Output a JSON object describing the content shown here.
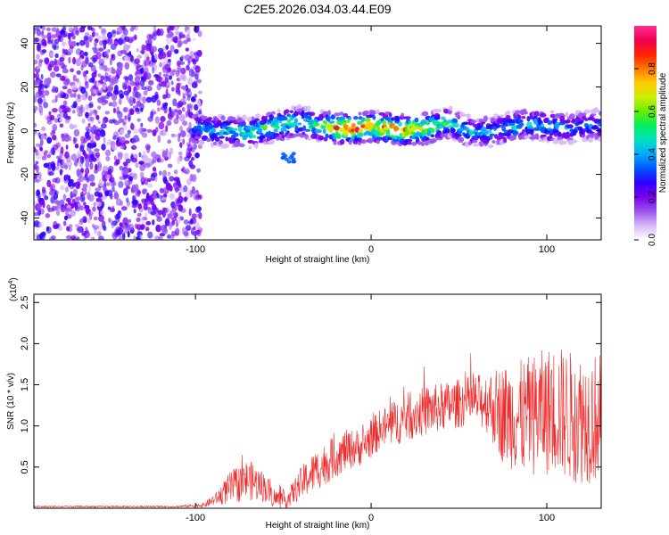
{
  "figure": {
    "title": "C2E5.2026.034.03.44.E09"
  },
  "colors": {
    "snr_line": "#ee2a2a",
    "axis": "#000000",
    "background": "#ffffff",
    "colormap": [
      "#ffffff",
      "#d8b8f8",
      "#9a55ee",
      "#7a00ee",
      "#3000ff",
      "#0055ff",
      "#00aaff",
      "#00e0c0",
      "#00ee60",
      "#66ee00",
      "#ccee00",
      "#ffcc00",
      "#ff7700",
      "#ff2200",
      "#ee0055",
      "#ff2d8c"
    ]
  },
  "chart_data": [
    {
      "type": "heatmap",
      "title": "C2E5.2026.034.03.44.E09",
      "xlabel": "Height of straight line (km)",
      "ylabel": "Frequency (Hz)",
      "xlim": [
        -192,
        131
      ],
      "ylim": [
        -50,
        48
      ],
      "xticks": [
        -100,
        0,
        100
      ],
      "xtick_labels": [
        "-100",
        "0",
        "100"
      ],
      "yticks": [
        -40,
        -20,
        0,
        20,
        40
      ],
      "ytick_labels": [
        "-40",
        "-20",
        "0",
        "20",
        "40"
      ],
      "colorbar": {
        "label": "Normalized spectral amplitude",
        "range": [
          0,
          1
        ],
        "ticks": [
          0.0,
          0.2,
          0.4,
          0.6,
          0.8
        ],
        "tick_labels": [
          "0.0",
          "0.2",
          "0.4",
          "0.6",
          "0.8"
        ]
      },
      "noise_region_x": [
        -192,
        -97
      ],
      "ridge": {
        "x": [
          -100,
          -85,
          -70,
          -60,
          -50,
          -40,
          -30,
          -20,
          -10,
          0,
          10,
          20,
          30,
          40,
          45,
          50,
          60,
          70,
          80,
          90,
          100,
          110,
          120,
          131
        ],
        "frequency": [
          1,
          0,
          -1,
          1,
          3,
          4,
          2,
          1,
          1,
          2,
          1,
          0,
          1,
          3,
          4,
          1,
          -1,
          0,
          2,
          3,
          2,
          1,
          2,
          3
        ],
        "amplitude": [
          0.45,
          0.5,
          0.55,
          0.6,
          0.6,
          0.55,
          0.6,
          0.9,
          0.95,
          0.85,
          0.9,
          0.85,
          0.75,
          0.6,
          0.55,
          0.5,
          0.45,
          0.45,
          0.5,
          0.45,
          0.5,
          0.45,
          0.4,
          0.4
        ]
      },
      "side_blob": {
        "x": -47,
        "frequency": -12,
        "amplitude": 0.3
      }
    },
    {
      "type": "line",
      "xlabel": "Height of straight line (km)",
      "ylabel": "SNR (10 * v/v)",
      "scale_label": "(x10",
      "scale_exponent": "4",
      "scale_close": ")",
      "xlim": [
        -192,
        131
      ],
      "ylim": [
        0,
        2.6
      ],
      "xticks": [
        -100,
        0,
        100
      ],
      "xtick_labels": [
        "-100",
        "0",
        "100"
      ],
      "yticks": [
        0.5,
        1.0,
        1.5,
        2.0,
        2.5
      ],
      "ytick_labels": [
        "0.5",
        "1.0",
        "1.5",
        "2.0",
        "2.5"
      ],
      "envelope": {
        "x": [
          -192,
          -110,
          -95,
          -88,
          -80,
          -70,
          -60,
          -55,
          -48,
          -40,
          -32,
          -25,
          -15,
          -5,
          5,
          15,
          25,
          35,
          45,
          55,
          65,
          75,
          85,
          95,
          105,
          115,
          125,
          131
        ],
        "mean": [
          0.02,
          0.02,
          0.04,
          0.12,
          0.25,
          0.35,
          0.25,
          0.12,
          0.1,
          0.3,
          0.45,
          0.55,
          0.7,
          0.75,
          0.95,
          1.05,
          1.15,
          1.2,
          1.25,
          1.3,
          1.3,
          1.15,
          1.1,
          1.15,
          1.2,
          1.1,
          1.1,
          1.1
        ],
        "spread": [
          0.01,
          0.01,
          0.03,
          0.08,
          0.2,
          0.25,
          0.18,
          0.12,
          0.1,
          0.2,
          0.25,
          0.25,
          0.25,
          0.22,
          0.25,
          0.28,
          0.3,
          0.3,
          0.3,
          0.3,
          0.35,
          0.6,
          0.7,
          0.75,
          0.8,
          0.8,
          0.8,
          0.8
        ]
      }
    }
  ]
}
